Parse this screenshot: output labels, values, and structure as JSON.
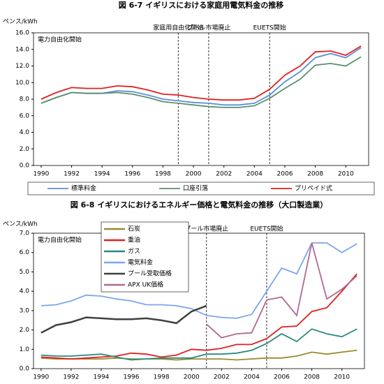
{
  "chart_data": [
    {
      "type": "line",
      "title": "図 6-7  イギリスにおける家庭用電気料金の推移",
      "y_label": "ペンス/kWh",
      "note": "電力自由化開始",
      "events": [
        {
          "label": "家庭用自由化開始",
          "x": 1999
        },
        {
          "label": "プール市場廃止",
          "x": 2001
        },
        {
          "label": "EUETS開始",
          "x": 2005
        }
      ],
      "legend": "below",
      "x": [
        1990,
        1991,
        1992,
        1993,
        1994,
        1995,
        1996,
        1997,
        1998,
        1999,
        2000,
        2001,
        2002,
        2003,
        2004,
        2005,
        2006,
        2007,
        2008,
        2009,
        2010,
        2011
      ],
      "xlim": [
        1989.5,
        2011.5
      ],
      "xticks": [
        1990,
        1992,
        1994,
        1996,
        1998,
        2000,
        2002,
        2004,
        2006,
        2008,
        2010
      ],
      "ylim": [
        0,
        16
      ],
      "yticks": [
        {
          "value": 0,
          "label": "0.0"
        },
        {
          "value": 2,
          "label": "2.0"
        },
        {
          "value": 4,
          "label": "4.0"
        },
        {
          "value": 6,
          "label": "6.0"
        },
        {
          "value": 8,
          "label": "8.0"
        },
        {
          "value": 10,
          "label": "10.0"
        },
        {
          "value": 12,
          "label": "12.0"
        },
        {
          "value": 14,
          "label": "14.0"
        },
        {
          "value": 16,
          "label": "16.0"
        }
      ],
      "series": [
        {
          "name": "標準料金",
          "color": "#5b8fd6",
          "values": [
            7.5,
            8.2,
            8.8,
            8.7,
            8.7,
            9.0,
            8.9,
            8.5,
            8.0,
            7.8,
            7.6,
            7.5,
            7.3,
            7.3,
            7.5,
            8.5,
            10.1,
            11.3,
            13.0,
            13.5,
            13.0,
            14.2
          ]
        },
        {
          "name": "口座引落",
          "color": "#5a9070",
          "values": [
            7.5,
            8.2,
            8.8,
            8.7,
            8.7,
            8.8,
            8.6,
            8.2,
            7.7,
            7.5,
            7.3,
            7.1,
            7.0,
            7.0,
            7.2,
            8.1,
            9.3,
            10.4,
            12.1,
            12.3,
            12.0,
            13.1
          ]
        },
        {
          "name": "プリペイド式",
          "color": "#e02020",
          "values": [
            8.0,
            8.8,
            9.4,
            9.3,
            9.3,
            9.6,
            9.5,
            9.1,
            8.6,
            8.5,
            8.2,
            8.0,
            7.9,
            7.9,
            8.1,
            9.2,
            10.9,
            12.0,
            13.7,
            13.8,
            13.3,
            14.4
          ]
        }
      ]
    },
    {
      "type": "line",
      "title": "図 6-8  イギリスにおけるエネルギー価格と電気料金の推移（大口製造業）",
      "y_label": "ペンス/kWh",
      "note": "電力自由化開始",
      "events": [
        {
          "label": "プール市場廃止",
          "x": 2001
        },
        {
          "label": "EUETS開始",
          "x": 2005
        }
      ],
      "legend": "upper-left",
      "x": [
        1990,
        1991,
        1992,
        1993,
        1994,
        1995,
        1996,
        1997,
        1998,
        1999,
        2000,
        2001,
        2002,
        2003,
        2004,
        2005,
        2006,
        2007,
        2008,
        2009,
        2010,
        2011
      ],
      "xlim": [
        1989.5,
        2011.5
      ],
      "xticks": [
        1990,
        1992,
        1994,
        1996,
        1998,
        2000,
        2002,
        2004,
        2006,
        2008,
        2010
      ],
      "ylim": [
        0,
        7
      ],
      "yticks": [
        {
          "value": 0,
          "label": "0.0"
        },
        {
          "value": 1,
          "label": "1.0"
        },
        {
          "value": 2,
          "label": "2.0"
        },
        {
          "value": 3,
          "label": "3.0"
        },
        {
          "value": 4,
          "label": "4.0"
        },
        {
          "value": 5,
          "label": "5.0"
        },
        {
          "value": 6,
          "label": "6.0"
        },
        {
          "value": 7,
          "label": "7.0"
        }
      ],
      "series": [
        {
          "name": "石炭",
          "color": "#9a8a30",
          "values": [
            0.55,
            0.5,
            0.5,
            0.5,
            0.5,
            0.55,
            0.5,
            0.5,
            0.5,
            0.45,
            0.5,
            0.5,
            0.5,
            0.45,
            0.5,
            0.55,
            0.55,
            0.65,
            0.85,
            0.75,
            0.85,
            0.95
          ]
        },
        {
          "name": "重油",
          "color": "#e02020",
          "values": [
            0.6,
            0.55,
            0.5,
            0.55,
            0.6,
            0.65,
            0.8,
            0.75,
            0.6,
            0.7,
            1.0,
            0.95,
            1.05,
            1.25,
            1.25,
            1.55,
            2.15,
            2.2,
            2.95,
            3.15,
            4.0,
            4.9
          ]
        },
        {
          "name": "ガス",
          "color": "#2a8a80",
          "values": [
            0.7,
            0.65,
            0.65,
            0.7,
            0.75,
            0.6,
            0.45,
            0.5,
            0.55,
            0.55,
            0.55,
            0.75,
            0.75,
            0.8,
            0.95,
            1.3,
            1.8,
            1.4,
            2.05,
            1.8,
            1.65,
            2.05
          ]
        },
        {
          "name": "電気料金",
          "color": "#7aa6f0",
          "values": [
            3.25,
            3.3,
            3.5,
            3.8,
            3.75,
            3.6,
            3.5,
            3.3,
            3.3,
            3.25,
            3.1,
            2.75,
            2.65,
            2.6,
            2.8,
            4.0,
            5.2,
            4.9,
            6.5,
            6.5,
            6.0,
            6.45
          ]
        },
        {
          "name": "プール受取価格",
          "color": "#404040",
          "values": [
            1.85,
            2.25,
            2.4,
            2.65,
            2.6,
            2.55,
            2.55,
            2.6,
            2.5,
            2.35,
            2.95,
            3.25,
            null,
            null,
            null,
            null,
            null,
            null,
            null,
            null,
            null,
            null
          ]
        },
        {
          "name": "APX UK価格",
          "color": "#b06a90",
          "values": [
            null,
            null,
            null,
            null,
            null,
            null,
            null,
            null,
            null,
            null,
            null,
            2.3,
            1.6,
            1.8,
            1.85,
            3.55,
            3.7,
            2.75,
            6.5,
            3.6,
            4.1,
            4.8
          ]
        }
      ]
    }
  ]
}
